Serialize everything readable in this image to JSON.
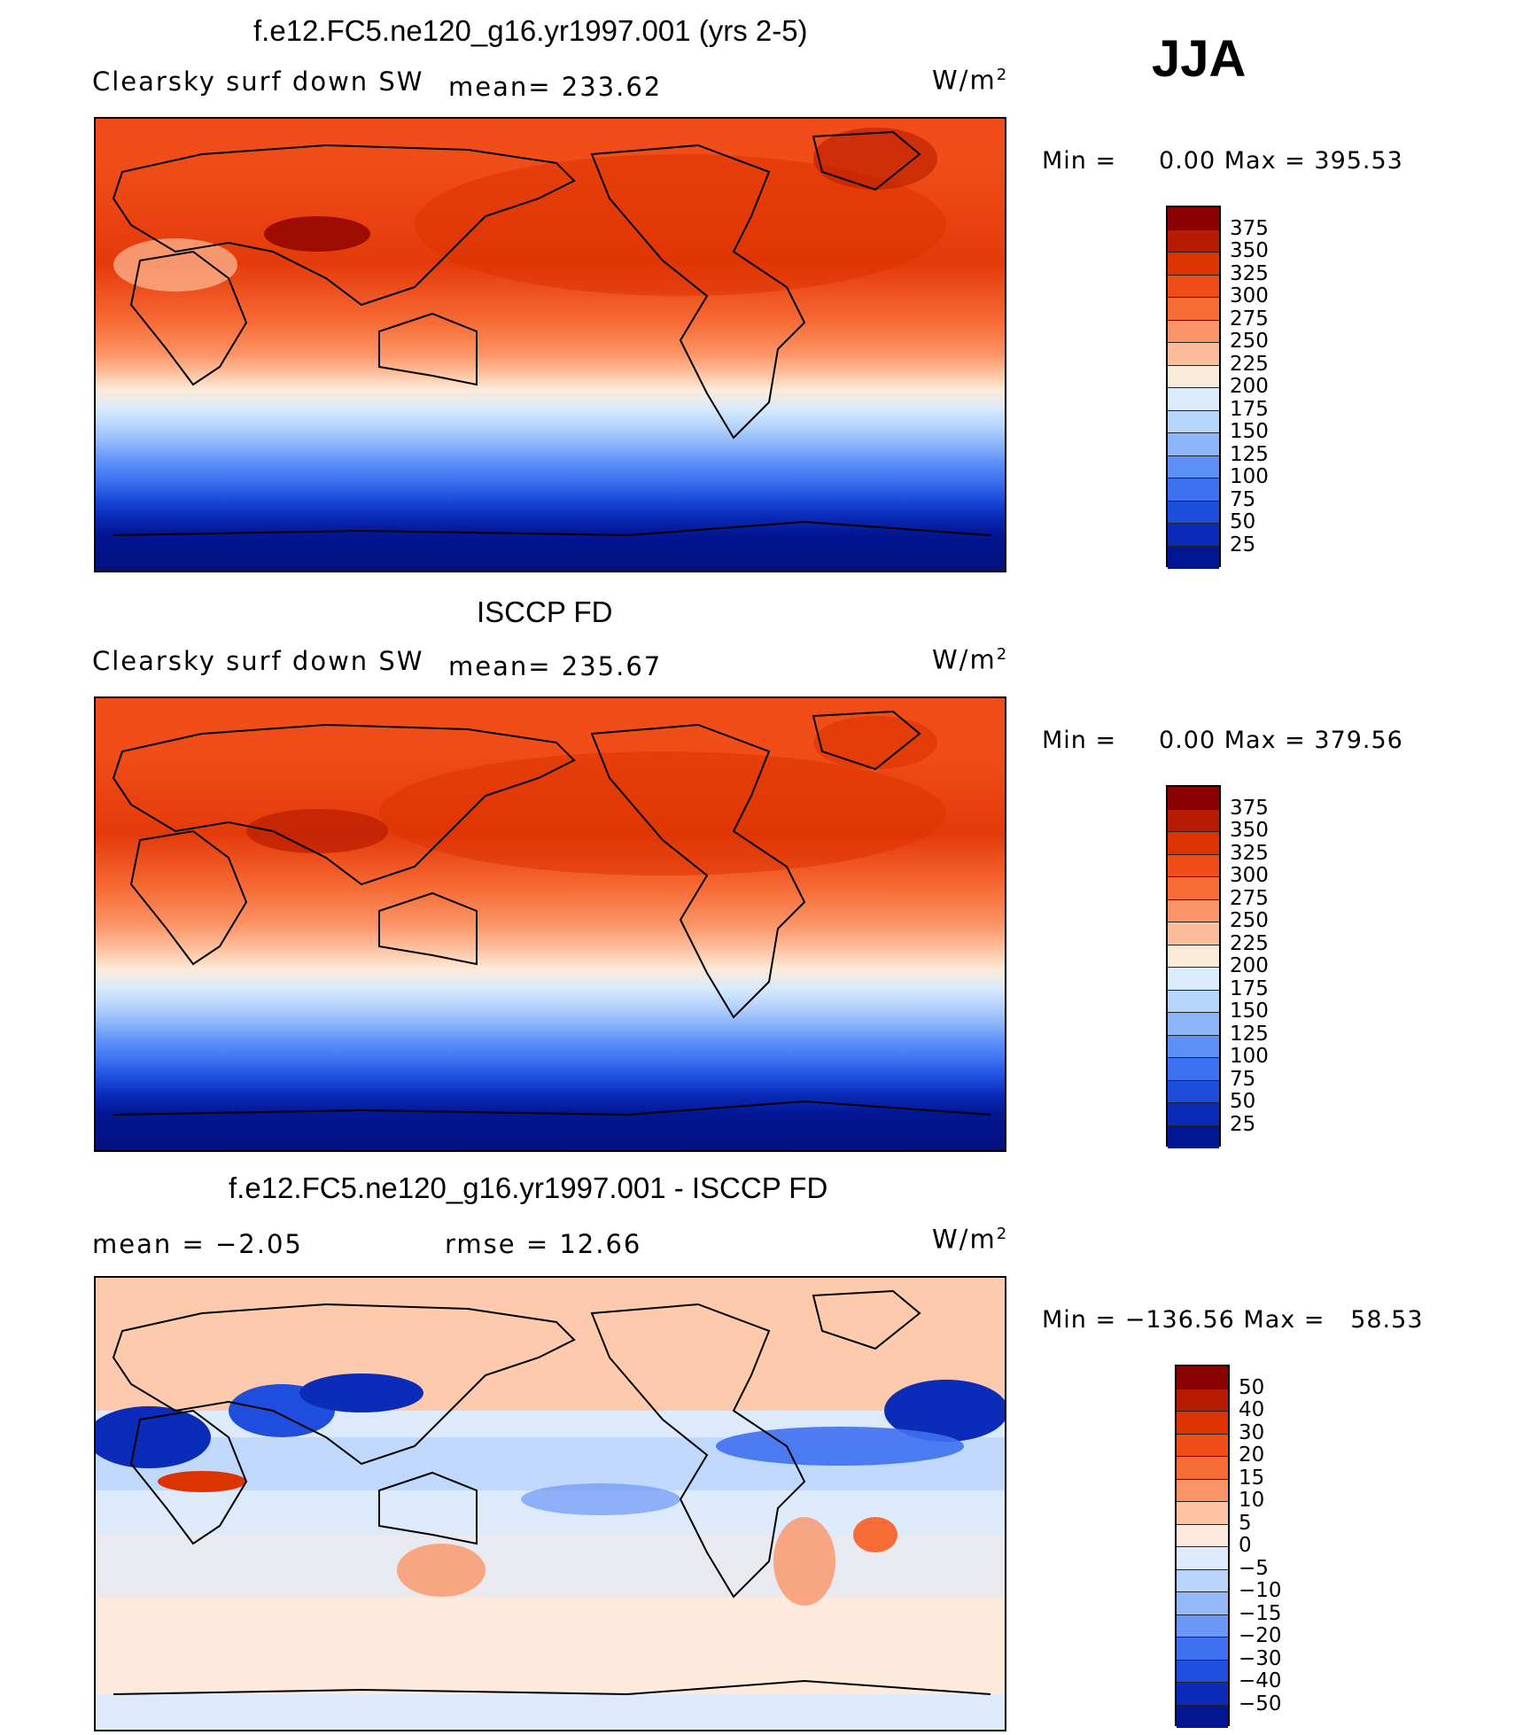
{
  "season": "JJA",
  "panels": [
    {
      "title": "f.e12.FC5.ne120_g16.yr1997.001 (yrs 2-5)",
      "left_label": "Clearsky surf down SW",
      "center_label": "mean= 233.62",
      "units": "W/m",
      "units_exp": "2",
      "min_label": "Min =",
      "min_value": "0.00",
      "max_label": "Max =",
      "max_value": "395.53",
      "colorbar_labels": [
        "375",
        "350",
        "325",
        "300",
        "275",
        "250",
        "225",
        "200",
        "175",
        "150",
        "125",
        "100",
        "75",
        "50",
        "25"
      ],
      "colorbar_colors": [
        "#8b0000",
        "#b81c00",
        "#dd3300",
        "#f04d18",
        "#f76b36",
        "#fb9466",
        "#fdbd9a",
        "#fdebd9",
        "#d9ebfc",
        "#b6d4fc",
        "#8cb5fb",
        "#5e91f7",
        "#3c72f2",
        "#1d4ddb",
        "#0a2ab8",
        "#031692"
      ]
    },
    {
      "title": "ISCCP FD",
      "left_label": "Clearsky surf down SW",
      "center_label": "mean= 235.67",
      "units": "W/m",
      "units_exp": "2",
      "min_label": "Min =",
      "min_value": "0.00",
      "max_label": "Max =",
      "max_value": "379.56",
      "colorbar_labels": [
        "375",
        "350",
        "325",
        "300",
        "275",
        "250",
        "225",
        "200",
        "175",
        "150",
        "125",
        "100",
        "75",
        "50",
        "25"
      ],
      "colorbar_colors": [
        "#8b0000",
        "#b81c00",
        "#dd3300",
        "#f04d18",
        "#f76b36",
        "#fb9466",
        "#fdbd9a",
        "#fdebd9",
        "#d9ebfc",
        "#b6d4fc",
        "#8cb5fb",
        "#5e91f7",
        "#3c72f2",
        "#1d4ddb",
        "#0a2ab8",
        "#031692"
      ]
    },
    {
      "title": "f.e12.FC5.ne120_g16.yr1997.001 - ISCCP FD",
      "left_label": "mean =    −2.05",
      "center_label": "rmse =    12.66",
      "units": "W/m",
      "units_exp": "2",
      "min_label": "Min =",
      "min_value": "−136.56",
      "max_label": "Max =",
      "max_value": "58.53",
      "colorbar_labels": [
        "50",
        "40",
        "30",
        "20",
        "15",
        "10",
        "5",
        "0",
        "−5",
        "−10",
        "−15",
        "−20",
        "−30",
        "−40",
        "−50"
      ],
      "colorbar_colors": [
        "#8b0000",
        "#b81c00",
        "#dd3300",
        "#f04d18",
        "#f76b36",
        "#fb9466",
        "#fdc2a2",
        "#fdeadc",
        "#dceafc",
        "#b9d3fb",
        "#95b8fa",
        "#6b97f6",
        "#3f70f0",
        "#1f4ddd",
        "#0b2cb8",
        "#031692"
      ]
    }
  ]
}
